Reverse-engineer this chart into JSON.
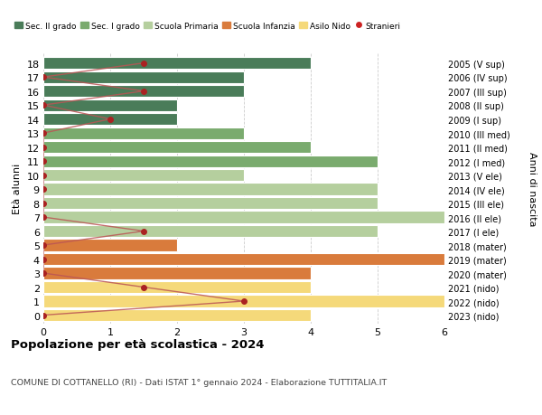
{
  "ages": [
    18,
    17,
    16,
    15,
    14,
    13,
    12,
    11,
    10,
    9,
    8,
    7,
    6,
    5,
    4,
    3,
    2,
    1,
    0
  ],
  "years": [
    "2005 (V sup)",
    "2006 (IV sup)",
    "2007 (III sup)",
    "2008 (II sup)",
    "2009 (I sup)",
    "2010 (III med)",
    "2011 (II med)",
    "2012 (I med)",
    "2013 (V ele)",
    "2014 (IV ele)",
    "2015 (III ele)",
    "2016 (II ele)",
    "2017 (I ele)",
    "2018 (mater)",
    "2019 (mater)",
    "2020 (mater)",
    "2021 (nido)",
    "2022 (nido)",
    "2023 (nido)"
  ],
  "values": [
    4,
    3,
    3,
    2,
    2,
    3,
    4,
    5,
    3,
    5,
    5,
    6,
    5,
    2,
    6,
    4,
    4,
    6,
    4
  ],
  "stranieri": [
    1.5,
    0,
    1.5,
    0,
    1,
    0,
    0,
    0,
    0,
    0,
    0,
    0,
    1.5,
    0,
    0,
    0,
    1.5,
    3,
    0
  ],
  "bar_colors": [
    "#4a7c59",
    "#4a7c59",
    "#4a7c59",
    "#4a7c59",
    "#4a7c59",
    "#7aab6e",
    "#7aab6e",
    "#7aab6e",
    "#b5cf9e",
    "#b5cf9e",
    "#b5cf9e",
    "#b5cf9e",
    "#b5cf9e",
    "#d97b3c",
    "#d97b3c",
    "#d97b3c",
    "#f5d97a",
    "#f5d97a",
    "#f5d97a"
  ],
  "legend_colors": [
    "#4a7c59",
    "#7aab6e",
    "#b5cf9e",
    "#d97b3c",
    "#f5d97a",
    "#cc2222"
  ],
  "legend_labels": [
    "Sec. II grado",
    "Sec. I grado",
    "Scuola Primaria",
    "Scuola Infanzia",
    "Asilo Nido",
    "Stranieri"
  ],
  "title": "Popolazione per età scolastica - 2024",
  "subtitle": "COMUNE DI COTTANELLO (RI) - Dati ISTAT 1° gennaio 2024 - Elaborazione TUTTITALIA.IT",
  "ylabel_left": "Età alunni",
  "ylabel_right": "Anni di nascita",
  "xlim": [
    0,
    6
  ],
  "xticks": [
    0,
    1,
    2,
    3,
    4,
    5,
    6
  ],
  "background_color": "#ffffff",
  "grid_color": "#cccccc",
  "bar_height": 0.85,
  "stranieri_color": "#aa2222",
  "stranieri_line_color": "#bb5555"
}
